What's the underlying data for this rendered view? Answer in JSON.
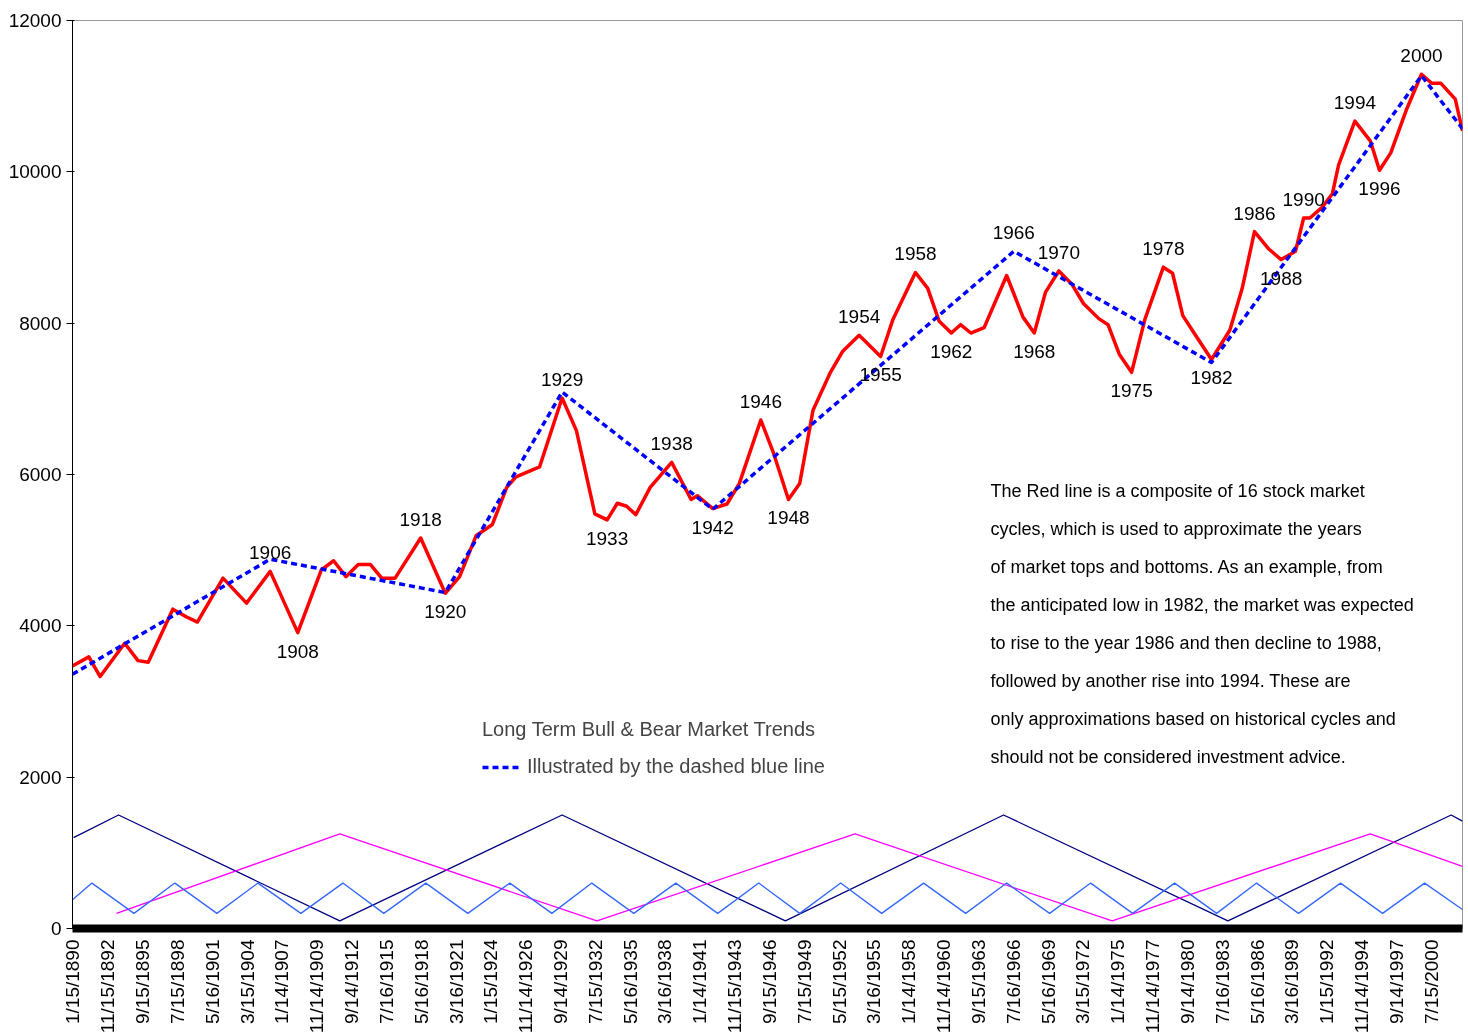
{
  "chart_data": {
    "type": "line",
    "xlim": [
      "1890-01",
      "2003-02"
    ],
    "ylim": [
      0,
      12000
    ],
    "yticks": [
      0,
      2000,
      4000,
      6000,
      8000,
      10000,
      12000
    ],
    "xticks": [
      {
        "value": "1890-01-15",
        "label": "1/15/1890"
      },
      {
        "value": "1892-11-15",
        "label": "11/15/1892"
      },
      {
        "value": "1895-09-15",
        "label": "9/15/1895"
      },
      {
        "value": "1898-07-15",
        "label": "7/15/1898"
      },
      {
        "value": "1901-05-16",
        "label": "5/16/1901"
      },
      {
        "value": "1904-03-15",
        "label": "3/15/1904"
      },
      {
        "value": "1907-01-14",
        "label": "1/14/1907"
      },
      {
        "value": "1909-11-14",
        "label": "11/14/1909"
      },
      {
        "value": "1912-09-14",
        "label": "9/14/1912"
      },
      {
        "value": "1915-07-16",
        "label": "7/16/1915"
      },
      {
        "value": "1918-05-16",
        "label": "5/16/1918"
      },
      {
        "value": "1921-03-16",
        "label": "3/16/1921"
      },
      {
        "value": "1924-01-15",
        "label": "1/15/1924"
      },
      {
        "value": "1926-11-14",
        "label": "11/14/1926"
      },
      {
        "value": "1929-09-14",
        "label": "9/14/1929"
      },
      {
        "value": "1932-07-15",
        "label": "7/15/1932"
      },
      {
        "value": "1935-05-16",
        "label": "5/16/1935"
      },
      {
        "value": "1938-03-16",
        "label": "3/16/1938"
      },
      {
        "value": "1941-01-14",
        "label": "1/14/1941"
      },
      {
        "value": "1943-11-15",
        "label": "11/15/1943"
      },
      {
        "value": "1946-09-15",
        "label": "9/15/1946"
      },
      {
        "value": "1949-07-15",
        "label": "7/15/1949"
      },
      {
        "value": "1952-05-15",
        "label": "5/15/1952"
      },
      {
        "value": "1955-03-16",
        "label": "3/16/1955"
      },
      {
        "value": "1958-01-14",
        "label": "1/14/1958"
      },
      {
        "value": "1960-11-14",
        "label": "11/14/1960"
      },
      {
        "value": "1963-09-15",
        "label": "9/15/1963"
      },
      {
        "value": "1966-07-16",
        "label": "7/16/1966"
      },
      {
        "value": "1969-05-16",
        "label": "5/16/1969"
      },
      {
        "value": "1972-03-15",
        "label": "3/15/1972"
      },
      {
        "value": "1975-01-14",
        "label": "1/14/1975"
      },
      {
        "value": "1977-11-14",
        "label": "11/14/1977"
      },
      {
        "value": "1980-09-14",
        "label": "9/14/1980"
      },
      {
        "value": "1983-07-16",
        "label": "7/16/1983"
      },
      {
        "value": "1986-05-16",
        "label": "5/16/1986"
      },
      {
        "value": "1989-03-16",
        "label": "3/16/1989"
      },
      {
        "value": "1992-01-15",
        "label": "1/15/1992"
      },
      {
        "value": "1994-11-14",
        "label": "11/14/1994"
      },
      {
        "value": "1997-09-14",
        "label": "9/14/1997"
      },
      {
        "value": "2000-07-15",
        "label": "7/15/2000"
      }
    ],
    "grid": false,
    "legend": "bottom",
    "marker": "none",
    "legend_title": "Long Term Bull & Bear Market Trends",
    "series": [
      {
        "color": "#000080",
        "line_style": "solid",
        "x": [
          "1890-02",
          "1893-10",
          "1911-10",
          "1929-11",
          "1948-01",
          "1965-10",
          "1984-01",
          "2002-03",
          "2003-02"
        ],
        "values": [
          1200,
          1500,
          100,
          1500,
          100,
          1500,
          100,
          1500,
          1420
        ]
      },
      {
        "color": "#ff00ff",
        "line_style": "solid",
        "x": [
          "1893-08",
          "1911-10",
          "1932-09",
          "1953-09",
          "1974-08",
          "1995-08",
          "2003-02"
        ],
        "values": [
          200,
          1250,
          100,
          1250,
          100,
          1250,
          820
        ]
      },
      {
        "color": "#3366ff",
        "line_style": "solid",
        "x": [
          "1890-01",
          "1891-08",
          "1895-01",
          "1898-05",
          "1901-10",
          "1905-02",
          "1908-08",
          "1912-01",
          "1915-05",
          "1918-10",
          "1922-03",
          "1925-08",
          "1929-01",
          "1932-04",
          "1935-09",
          "1939-02",
          "1942-07",
          "1945-11",
          "1949-03",
          "1952-07",
          "1955-11",
          "1959-04",
          "1962-09",
          "1966-01",
          "1969-07",
          "1972-11",
          "1976-04",
          "1979-09",
          "1983-02",
          "1986-05",
          "1989-10",
          "1993-03",
          "1996-08",
          "2000-01",
          "2003-02"
        ],
        "values": [
          380,
          600,
          200,
          600,
          200,
          600,
          200,
          600,
          200,
          600,
          200,
          600,
          200,
          600,
          200,
          600,
          200,
          600,
          200,
          600,
          200,
          600,
          200,
          600,
          200,
          600,
          200,
          600,
          200,
          600,
          200,
          600,
          200,
          600,
          250
        ]
      },
      {
        "color": "#ff0000",
        "line_style": "solid",
        "x": [
          "1890-01",
          "1891-05",
          "1892-04",
          "1894-04",
          "1895-05",
          "1896-03",
          "1898-03",
          "1899-04",
          "1900-03",
          "1902-04",
          "1904-03",
          "1906-02",
          "1908-05",
          "1910-04",
          "1911-04",
          "1912-04",
          "1913-04",
          "1914-04",
          "1915-03",
          "1916-04",
          "1918-05",
          "1920-05",
          "1921-07",
          "1922-11",
          "1924-03",
          "1925-05",
          "1926-02",
          "1928-01",
          "1929-11",
          "1931-01",
          "1932-07",
          "1933-07",
          "1934-05",
          "1935-02",
          "1935-11",
          "1937-01",
          "1938-10",
          "1940-05",
          "1940-11",
          "1942-02",
          "1943-04",
          "1944-04",
          "1946-01",
          "1947-01",
          "1948-04",
          "1949-03",
          "1950-04",
          "1951-09",
          "1952-09",
          "1954-01",
          "1955-10",
          "1956-10",
          "1958-08",
          "1959-08",
          "1960-07",
          "1961-07",
          "1962-04",
          "1963-02",
          "1964-03",
          "1966-01",
          "1967-05",
          "1968-04",
          "1969-03",
          "1970-04",
          "1971-05",
          "1972-04",
          "1973-07",
          "1974-04",
          "1975-03",
          "1976-03",
          "1977-04",
          "1978-10",
          "1979-07",
          "1980-05",
          "1981-04",
          "1982-09",
          "1984-03",
          "1985-03",
          "1986-03",
          "1987-05",
          "1988-05",
          "1989-07",
          "1990-03",
          "1990-09",
          "1991-09",
          "1992-07",
          "1993-01",
          "1994-05",
          "1995-08",
          "1996-05",
          "1997-04",
          "1998-07",
          "1999-10",
          "2000-08",
          "2001-05",
          "2002-07",
          "2003-02"
        ],
        "values": [
          3470,
          3590,
          3330,
          3770,
          3540,
          3520,
          4220,
          4120,
          4050,
          4630,
          4300,
          4720,
          3910,
          4740,
          4860,
          4650,
          4810,
          4810,
          4630,
          4630,
          5160,
          4430,
          4650,
          5190,
          5340,
          5830,
          5970,
          6100,
          7010,
          6580,
          5480,
          5400,
          5620,
          5580,
          5470,
          5830,
          6160,
          5670,
          5720,
          5550,
          5610,
          5880,
          6720,
          6300,
          5670,
          5880,
          6850,
          7350,
          7630,
          7840,
          7560,
          8050,
          8670,
          8460,
          8030,
          7870,
          7980,
          7870,
          7940,
          8630,
          8080,
          7870,
          8410,
          8690,
          8510,
          8260,
          8060,
          7980,
          7590,
          7350,
          8050,
          8740,
          8660,
          8100,
          7870,
          7520,
          7910,
          8460,
          9210,
          8980,
          8840,
          8950,
          9390,
          9390,
          9530,
          9710,
          10090,
          10670,
          10410,
          10020,
          10250,
          10810,
          11290,
          11170,
          11170,
          10960,
          10540
        ]
      },
      {
        "name": "Illustrated by the dashed blue line",
        "color": "#0000ff",
        "line_style": "dashed",
        "x": [
          "1890-01",
          "1906-02",
          "1920-05",
          "1929-11",
          "1942-02",
          "1966-08",
          "1982-09",
          "1999-10",
          "2003-02"
        ],
        "values": [
          3360,
          4880,
          4440,
          7090,
          5540,
          8950,
          7480,
          11270,
          10570
        ]
      }
    ],
    "annotations": [
      {
        "text": "1906",
        "x": "1906-02",
        "y": 4720
      },
      {
        "text": "1908",
        "x": "1908-05",
        "y": 3910
      },
      {
        "text": "1918",
        "x": "1918-05",
        "y": 5160
      },
      {
        "text": "1920",
        "x": "1920-05",
        "y": 4430
      },
      {
        "text": "1929",
        "x": "1929-11",
        "y": 7010
      },
      {
        "text": "1933",
        "x": "1933-07",
        "y": 5400
      },
      {
        "text": "1938",
        "x": "1938-10",
        "y": 6160
      },
      {
        "text": "1942",
        "x": "1942-02",
        "y": 5550
      },
      {
        "text": "1946",
        "x": "1946-01",
        "y": 6720
      },
      {
        "text": "1948",
        "x": "1948-04",
        "y": 5670
      },
      {
        "text": "1954",
        "x": "1954-01",
        "y": 7840
      },
      {
        "text": "1955",
        "x": "1955-10",
        "y": 7560
      },
      {
        "text": "1958",
        "x": "1958-08",
        "y": 8670
      },
      {
        "text": "1962",
        "x": "1961-07",
        "y": 7870
      },
      {
        "text": "1966",
        "x": "1966-08",
        "y": 8950
      },
      {
        "text": "1968",
        "x": "1968-04",
        "y": 7870
      },
      {
        "text": "1970",
        "x": "1970-04",
        "y": 8690
      },
      {
        "text": "1975",
        "x": "1976-03",
        "y": 7350
      },
      {
        "text": "1978",
        "x": "1978-10",
        "y": 8740
      },
      {
        "text": "1982",
        "x": "1982-09",
        "y": 7520
      },
      {
        "text": "1986",
        "x": "1986-03",
        "y": 9210
      },
      {
        "text": "1988",
        "x": "1988-05",
        "y": 8840
      },
      {
        "text": "1990",
        "x": "1990-03",
        "y": 9390
      },
      {
        "text": "1994",
        "x": "1994-05",
        "y": 10670
      },
      {
        "text": "1996",
        "x": "1996-05",
        "y": 10020
      },
      {
        "text": "2000",
        "x": "1999-10",
        "y": 11290
      },
      "The Red line is a composite of 16 stock market\ncycles, which is used to approximate the years\nof market tops and bottoms. As an example, from\nthe anticipated low in 1982, the market was expected\nto rise to the year 1986 and then decline to 1988,\nfollowed by another rise into 1994. These are\nonly approximations based on historical cycles and\nshould not be considered investment advice."
    ]
  }
}
